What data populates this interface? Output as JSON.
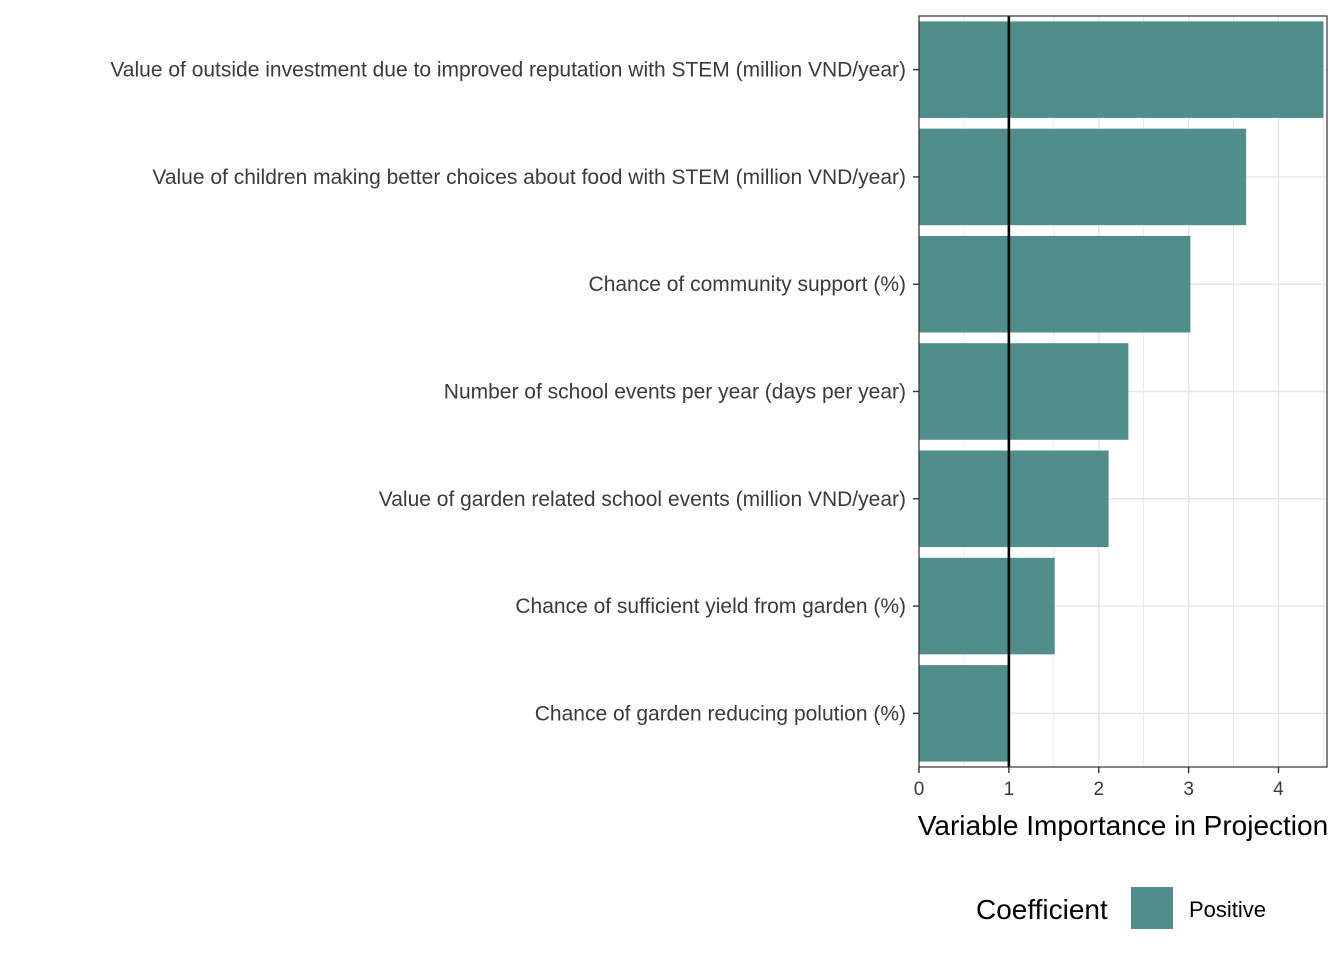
{
  "chart_data": {
    "type": "bar",
    "orientation": "horizontal",
    "categories": [
      "Value of outside investment due to improved reputation with STEM (million VND/year)",
      "Value of children making better choices about food with STEM (million VND/year)",
      "Chance of community support (%)",
      "Number of school events per year (days per year)",
      "Value of garden related school events (million VND/year)",
      "Chance of sufficient yield from garden (%)",
      "Chance of garden reducing polution (%)"
    ],
    "values": [
      4.5,
      3.64,
      3.02,
      2.33,
      2.11,
      1.51,
      1.0
    ],
    "series": [
      {
        "name": "Positive",
        "values": [
          4.5,
          3.64,
          3.02,
          2.33,
          2.11,
          1.51,
          1.0
        ]
      }
    ],
    "xlabel": "Variable Importance in Projection",
    "ylabel": "",
    "title": "",
    "xlim": [
      0,
      4.54
    ],
    "xticks": [
      0,
      1,
      2,
      3,
      4
    ],
    "reference_line": 1,
    "grid": true,
    "legend": {
      "title": "Coefficient",
      "entries": [
        "Positive"
      ],
      "placement": "bottom"
    },
    "colors": {
      "bar": "#508e8c",
      "reference_line": "#000000",
      "grid": "#e6e6e6",
      "panel_border": "#333333"
    }
  }
}
